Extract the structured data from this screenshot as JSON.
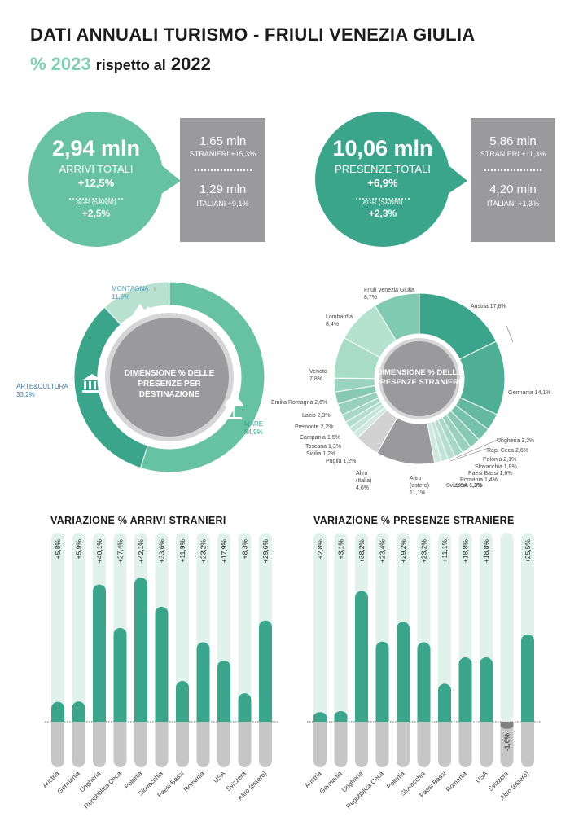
{
  "header": {
    "title": "DATI ANNUALI TURISMO - FRIULI VENEZIA GIULIA",
    "subtitle_pct": "% 2023",
    "subtitle_mid": "rispetto al",
    "subtitle_year": "2022"
  },
  "arrivi": {
    "value": "2,94 mln",
    "label": "ARRIVI TOTALI",
    "change": "+12,5%",
    "agr_label": "AGR (SANNI)",
    "agr_value": "+2,5%",
    "stranieri_value": "1,65 mln",
    "stranieri_label": "STRANIERI +15,3%",
    "italiani_value": "1,29 mln",
    "italiani_label": "ITALIANI +9,1%"
  },
  "presenze": {
    "value": "10,06 mln",
    "label": "PRESENZE TOTALI",
    "change": "+6,9%",
    "agr_label": "AGR (SANNI)",
    "agr_value": "+2,3%",
    "stranieri_value": "5,86 mln",
    "stranieri_label": "STRANIERI +11,3%",
    "italiani_value": "4,20 mln",
    "italiani_label": "ITALIANI +1,3%"
  },
  "colors": {
    "teal_dark": "#3aa58b",
    "teal_mid": "#67c2a4",
    "teal_light": "#b8e1d2",
    "grey": "#9a9a9c",
    "pale": "#e1f1eb"
  },
  "chart_data": [
    {
      "type": "pie",
      "title": "DIMENSIONE % DELLE PRESENZE PER DESTINAZIONE",
      "slices": [
        {
          "label": "MARE",
          "value": 54.9,
          "label_text": "MARE",
          "pct_text": "54,9%",
          "color": "#67c2a4"
        },
        {
          "label": "ARTE&CULTURA",
          "value": 33.2,
          "label_text": "ARTE&CULTURA",
          "pct_text": "33,2%",
          "color": "#3aa58b"
        },
        {
          "label": "MONTAGNA",
          "value": 11.9,
          "label_text": "MONTAGNA",
          "pct_text": "11,9%",
          "color": "#b8e1d2"
        }
      ]
    },
    {
      "type": "pie",
      "title": "DIMENSIONE % DELLE PRESENZE STRANIERE",
      "slices": [
        {
          "label": "Austria 17,8%",
          "value": 17.8,
          "color": "#3aa58b"
        },
        {
          "label": "Germania 14,1%",
          "value": 14.1,
          "color": "#4eaf95"
        },
        {
          "label": "Ungheria 3,2%",
          "value": 3.2,
          "color": "#64b9a0"
        },
        {
          "label": "Rep. Ceca 2,6%",
          "value": 2.6,
          "color": "#76c1aa"
        },
        {
          "label": "Polonia 2,1%",
          "value": 2.1,
          "color": "#88c9b4"
        },
        {
          "label": "Slovacchia 1,8%",
          "value": 1.8,
          "color": "#98d0bd"
        },
        {
          "label": "Paesi Bassi 1,6%",
          "value": 1.6,
          "color": "#a7d7c6"
        },
        {
          "label": "Romania 1,4%",
          "value": 1.4,
          "color": "#b5ddcf"
        },
        {
          "label": "USA 1,3%",
          "value": 1.3,
          "color": "#c2e3d7"
        },
        {
          "label": "Svizzera 1,3%",
          "value": 1.3,
          "color": "#cfe9df"
        },
        {
          "label": "Altro (estero) 11,1%",
          "value": 11.1,
          "color": "#9a9a9c"
        },
        {
          "label": "Altro (Italia) 4,6%",
          "value": 4.6,
          "color": "#d2d2d2"
        },
        {
          "label": "Puglia 1,2%",
          "value": 1.2,
          "color": "#cfe9df"
        },
        {
          "label": "Sicilia 1,2%",
          "value": 1.2,
          "color": "#c2e3d7"
        },
        {
          "label": "Toscana 1,3%",
          "value": 1.3,
          "color": "#b5ddcf"
        },
        {
          "label": "Campania 1,5%",
          "value": 1.5,
          "color": "#a7d7c6"
        },
        {
          "label": "Piemonte 2,2%",
          "value": 2.2,
          "color": "#98d0bd"
        },
        {
          "label": "Lazio 2,3%",
          "value": 2.3,
          "color": "#88c9b4"
        },
        {
          "label": "Emilia Romagna 2,6%",
          "value": 2.6,
          "color": "#9ad3bf"
        },
        {
          "label": "Veneto 7,8%",
          "value": 7.8,
          "color": "#a8dcc7"
        },
        {
          "label": "Lombardia 8,4%",
          "value": 8.4,
          "color": "#b5e1cf"
        },
        {
          "label": "Friuli Venezia Giulia 8,7%",
          "value": 8.7,
          "color": "#7fcab0"
        }
      ]
    },
    {
      "type": "bar",
      "title": "VARIAZIONE % ARRIVI STRANIERI",
      "categories": [
        "Austria",
        "Germania",
        "Ungheria",
        "Repubblica Ceca",
        "Polonia",
        "Slovacchia",
        "Paesi Bassi",
        "Romania",
        "USA",
        "Svizzera",
        "Altro (estero)"
      ],
      "values": [
        5.8,
        5.9,
        40.1,
        27.4,
        42.1,
        33.6,
        11.9,
        23.2,
        17.9,
        8.3,
        29.6
      ],
      "value_labels": [
        "+5,8%",
        "+5,9%",
        "+40,1%",
        "+27,4%",
        "+42,1%",
        "+33,6%",
        "+11,9%",
        "+23,2%",
        "+17,9%",
        "+8,3%",
        "+29,6%"
      ]
    },
    {
      "type": "bar",
      "title": "VARIAZIONE % PRESENZE STRANIERE",
      "categories": [
        "Austria",
        "Germania",
        "Ungheria",
        "Repubblica Ceca",
        "Polonia",
        "Slovacchia",
        "Paesi Bassi",
        "Romania",
        "USA",
        "Svizzera",
        "Altro (estero)"
      ],
      "values": [
        2.8,
        3.1,
        38.2,
        23.4,
        29.2,
        23.2,
        11.1,
        18.8,
        18.8,
        -1.6,
        25.5
      ],
      "value_labels": [
        "+2,8%",
        "+3,1%",
        "+38,2%",
        "+23,4%",
        "+29,2%",
        "+23,2%",
        "+11,1%",
        "+18,8%",
        "+18,8%",
        "-1,6%",
        "+25,5%"
      ]
    }
  ],
  "icons": {
    "mountain": "mountain-icon",
    "museum": "museum-icon",
    "beach": "beach-umbrella-icon"
  }
}
